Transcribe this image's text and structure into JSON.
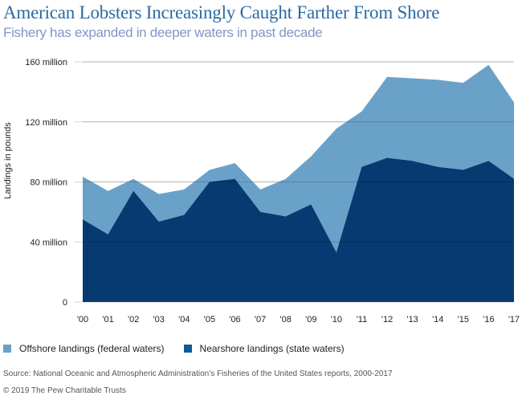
{
  "header": {
    "title": "American Lobsters Increasingly Caught Farther From Shore",
    "subtitle": "Fishery has expanded in deeper waters in past decade"
  },
  "legend": {
    "items": [
      {
        "label": "Offshore landings (federal waters)",
        "color": "#6aa1c9"
      },
      {
        "label": "Nearshore landings (state waters)",
        "color": "#083a72"
      }
    ]
  },
  "footer": {
    "source": "Source: National Oceanic and Atmospheric Administration’s Fisheries of the United States reports, 2000-2017",
    "copyright": "© 2019 The Pew Charitable Trusts"
  },
  "chart_data": {
    "type": "area",
    "stacked": true,
    "title": "American Lobsters Increasingly Caught Farther From Shore",
    "subtitle": "Fishery has expanded in deeper waters in past decade",
    "xlabel": "",
    "ylabel": "Landings in pounds",
    "categories": [
      "'00",
      "'01",
      "'02",
      "'03",
      "'04",
      "'05",
      "'06",
      "'07",
      "'08",
      "'09",
      "'10",
      "'11",
      "'12",
      "'13",
      "'14",
      "'15",
      "'16",
      "'17"
    ],
    "ylim": [
      0,
      160
    ],
    "yticks": [
      0,
      40,
      80,
      120,
      160
    ],
    "ytick_labels": [
      "0",
      "40 million",
      "80 million",
      "120 million",
      "160 million"
    ],
    "grid": true,
    "legend_position": "bottom-left",
    "units": "million pounds",
    "series": [
      {
        "name": "Nearshore landings (state waters)",
        "color": "#083a72",
        "values": [
          55,
          45,
          74,
          53.5,
          58,
          80,
          82,
          60,
          57,
          65,
          33,
          90,
          96,
          94,
          90,
          88,
          94,
          82
        ]
      },
      {
        "name": "Offshore landings (federal waters)",
        "color": "#6aa1c9",
        "values": [
          28.5,
          29,
          8,
          18.5,
          17,
          8,
          10.5,
          15,
          25,
          32,
          82.5,
          37,
          54,
          55,
          58,
          58,
          64,
          51
        ]
      }
    ],
    "totals": [
      83.5,
      74,
      82,
      72,
      75,
      88,
      92.5,
      75,
      82,
      97,
      115.5,
      127,
      150,
      149,
      148,
      146,
      158,
      133
    ]
  }
}
